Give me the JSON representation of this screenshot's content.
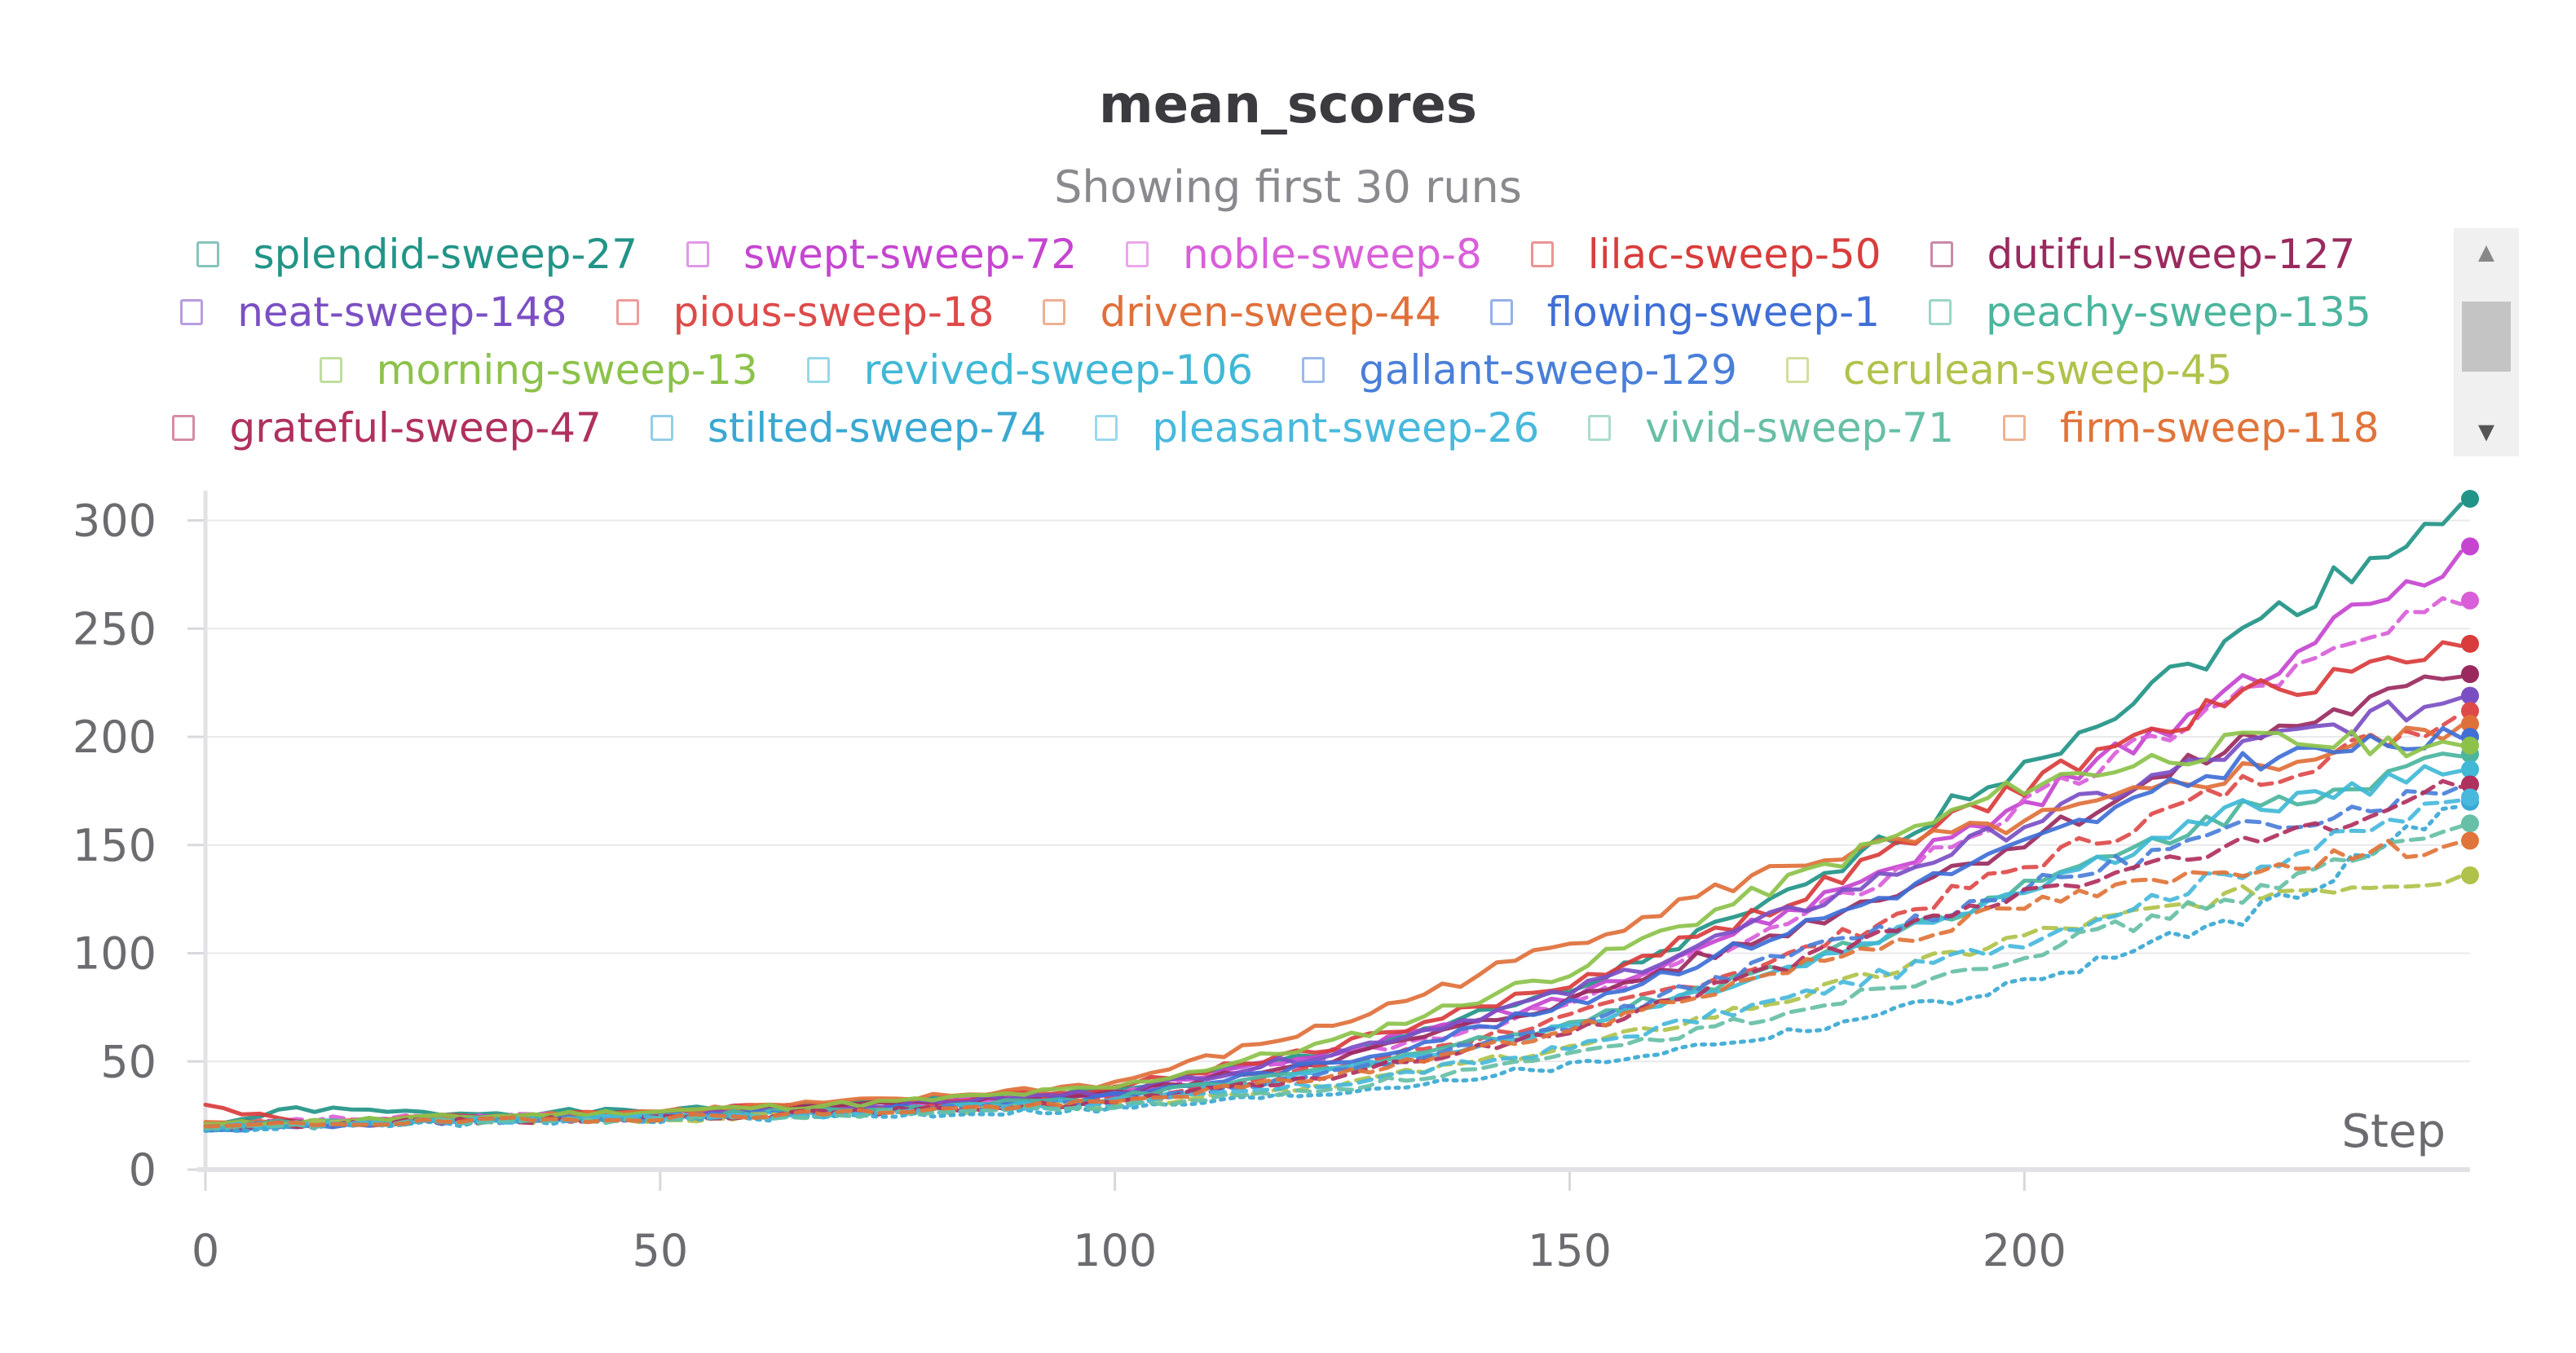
{
  "chart_data": {
    "type": "line",
    "title": "mean_scores",
    "subtitle": "Showing first 30 runs",
    "xlabel": "Step",
    "ylabel": "",
    "xlim": [
      0,
      249
    ],
    "ylim": [
      0,
      310
    ],
    "x_ticks": [
      0,
      50,
      100,
      150,
      200
    ],
    "y_ticks": [
      0,
      50,
      100,
      150,
      200,
      250,
      300
    ],
    "grid": true,
    "legend_position": "top",
    "legend_rows": [
      [
        "splendid-sweep-27",
        "swept-sweep-72",
        "noble-sweep-8",
        "lilac-sweep-50",
        "dutiful-sweep-127"
      ],
      [
        "neat-sweep-148",
        "pious-sweep-18",
        "driven-sweep-44",
        "flowing-sweep-1",
        "peachy-sweep-135"
      ],
      [
        "morning-sweep-13",
        "revived-sweep-106",
        "gallant-sweep-129",
        "cerulean-sweep-45"
      ],
      [
        "grateful-sweep-47",
        "stilted-sweep-74",
        "pleasant-sweep-26",
        "vivid-sweep-71",
        "firm-sweep-118"
      ]
    ],
    "series": [
      {
        "name": "splendid-sweep-27",
        "color": "#229487",
        "dash": "solid",
        "x": [
          0,
          10,
          25,
          50,
          75,
          100,
          125,
          150,
          175,
          200,
          225,
          249
        ],
        "y": [
          20,
          28,
          26,
          27,
          31,
          37,
          55,
          82,
          128,
          188,
          250,
          310
        ]
      },
      {
        "name": "swept-sweep-72",
        "color": "#c545d0",
        "dash": "solid",
        "x": [
          0,
          10,
          25,
          50,
          75,
          100,
          125,
          150,
          175,
          200,
          225,
          249
        ],
        "y": [
          19,
          22,
          23,
          26,
          30,
          36,
          55,
          80,
          120,
          168,
          228,
          288
        ]
      },
      {
        "name": "noble-sweep-8",
        "color": "#d95fd9",
        "dash": "dashed",
        "x": [
          0,
          10,
          25,
          50,
          75,
          100,
          125,
          150,
          175,
          200,
          225,
          249
        ],
        "y": [
          20,
          23,
          24,
          26,
          29,
          35,
          52,
          76,
          115,
          168,
          222,
          263
        ]
      },
      {
        "name": "lilac-sweep-50",
        "color": "#d93c3c",
        "dash": "solid",
        "x": [
          0,
          10,
          25,
          50,
          75,
          100,
          125,
          150,
          175,
          200,
          225,
          249
        ],
        "y": [
          30,
          22,
          24,
          27,
          31,
          38,
          58,
          86,
          125,
          178,
          220,
          243
        ]
      },
      {
        "name": "dutiful-sweep-127",
        "color": "#9a2a5e",
        "dash": "solid",
        "x": [
          0,
          10,
          25,
          50,
          75,
          100,
          125,
          150,
          175,
          200,
          225,
          249
        ],
        "y": [
          21,
          22,
          23,
          26,
          30,
          35,
          52,
          78,
          112,
          152,
          200,
          229
        ]
      },
      {
        "name": "neat-sweep-148",
        "color": "#7b4fc4",
        "dash": "solid",
        "x": [
          0,
          10,
          25,
          50,
          75,
          100,
          125,
          150,
          175,
          200,
          225,
          249
        ],
        "y": [
          20,
          21,
          23,
          25,
          30,
          36,
          55,
          82,
          120,
          160,
          196,
          219
        ]
      },
      {
        "name": "pious-sweep-18",
        "color": "#de4a4a",
        "dash": "dashed",
        "x": [
          0,
          10,
          25,
          50,
          75,
          100,
          125,
          150,
          175,
          200,
          225,
          249
        ],
        "y": [
          19,
          21,
          22,
          25,
          28,
          33,
          48,
          70,
          100,
          140,
          180,
          212
        ]
      },
      {
        "name": "driven-sweep-44",
        "color": "#e0703a",
        "dash": "solid",
        "x": [
          0,
          10,
          25,
          50,
          75,
          100,
          125,
          150,
          175,
          200,
          225,
          249
        ],
        "y": [
          22,
          21,
          24,
          27,
          32,
          40,
          68,
          105,
          142,
          160,
          185,
          206
        ]
      },
      {
        "name": "flowing-sweep-1",
        "color": "#3f6fd6",
        "dash": "solid",
        "x": [
          0,
          10,
          25,
          50,
          75,
          100,
          125,
          150,
          175,
          200,
          225,
          249
        ],
        "y": [
          18,
          20,
          22,
          24,
          28,
          34,
          50,
          76,
          112,
          150,
          190,
          200
        ]
      },
      {
        "name": "peachy-sweep-135",
        "color": "#4bb59d",
        "dash": "solid",
        "x": [
          0,
          10,
          25,
          50,
          75,
          100,
          125,
          150,
          175,
          200,
          225,
          249
        ],
        "y": [
          20,
          22,
          23,
          25,
          28,
          33,
          47,
          68,
          96,
          130,
          168,
          192
        ]
      },
      {
        "name": "morning-sweep-13",
        "color": "#8cc24a",
        "dash": "solid",
        "x": [
          0,
          10,
          25,
          50,
          75,
          100,
          125,
          150,
          175,
          200,
          225,
          249
        ],
        "y": [
          21,
          22,
          24,
          27,
          31,
          38,
          60,
          92,
          135,
          178,
          198,
          196
        ]
      },
      {
        "name": "revived-sweep-106",
        "color": "#40b8d6",
        "dash": "solid",
        "x": [
          0,
          10,
          25,
          50,
          75,
          100,
          125,
          150,
          175,
          200,
          225,
          249
        ],
        "y": [
          19,
          21,
          22,
          24,
          27,
          32,
          46,
          66,
          94,
          130,
          168,
          185
        ]
      },
      {
        "name": "gallant-sweep-129",
        "color": "#4a7fd8",
        "dash": "dashed",
        "x": [
          0,
          10,
          25,
          50,
          75,
          100,
          125,
          150,
          175,
          200,
          225,
          249
        ],
        "y": [
          20,
          21,
          22,
          24,
          27,
          31,
          45,
          66,
          100,
          130,
          158,
          178
        ]
      },
      {
        "name": "cerulean-sweep-45",
        "color": "#b0c24a",
        "dash": "dashed",
        "x": [
          0,
          10,
          25,
          50,
          75,
          100,
          125,
          150,
          175,
          200,
          225,
          249
        ],
        "y": [
          20,
          21,
          22,
          23,
          26,
          30,
          40,
          56,
          80,
          108,
          128,
          136
        ]
      },
      {
        "name": "grateful-sweep-47",
        "color": "#b0305e",
        "dash": "dashed",
        "x": [
          0,
          10,
          25,
          50,
          75,
          100,
          125,
          150,
          175,
          200,
          225,
          249
        ],
        "y": [
          19,
          21,
          22,
          24,
          27,
          31,
          44,
          64,
          96,
          128,
          150,
          178
        ]
      },
      {
        "name": "stilted-sweep-74",
        "color": "#39a8d2",
        "dash": "dotted",
        "x": [
          0,
          10,
          25,
          50,
          75,
          100,
          125,
          150,
          175,
          200,
          225,
          249
        ],
        "y": [
          18,
          20,
          21,
          23,
          25,
          28,
          36,
          48,
          64,
          86,
          118,
          170
        ]
      },
      {
        "name": "pleasant-sweep-26",
        "color": "#48b8dc",
        "dash": "dashed",
        "x": [
          0,
          10,
          25,
          50,
          75,
          100,
          125,
          150,
          175,
          200,
          225,
          249
        ],
        "y": [
          20,
          21,
          22,
          24,
          26,
          30,
          40,
          56,
          80,
          106,
          140,
          172
        ]
      },
      {
        "name": "vivid-sweep-71",
        "color": "#66bfa6",
        "dash": "dashed",
        "x": [
          0,
          10,
          25,
          50,
          75,
          100,
          125,
          150,
          175,
          200,
          225,
          249
        ],
        "y": [
          19,
          20,
          22,
          23,
          26,
          29,
          38,
          52,
          74,
          100,
          128,
          160
        ]
      },
      {
        "name": "firm-sweep-118",
        "color": "#e0743a",
        "dash": "dashed",
        "x": [
          0,
          10,
          25,
          50,
          75,
          100,
          125,
          150,
          175,
          200,
          225,
          249
        ],
        "y": [
          20,
          21,
          22,
          24,
          27,
          31,
          44,
          64,
          94,
          122,
          140,
          152
        ]
      }
    ]
  }
}
